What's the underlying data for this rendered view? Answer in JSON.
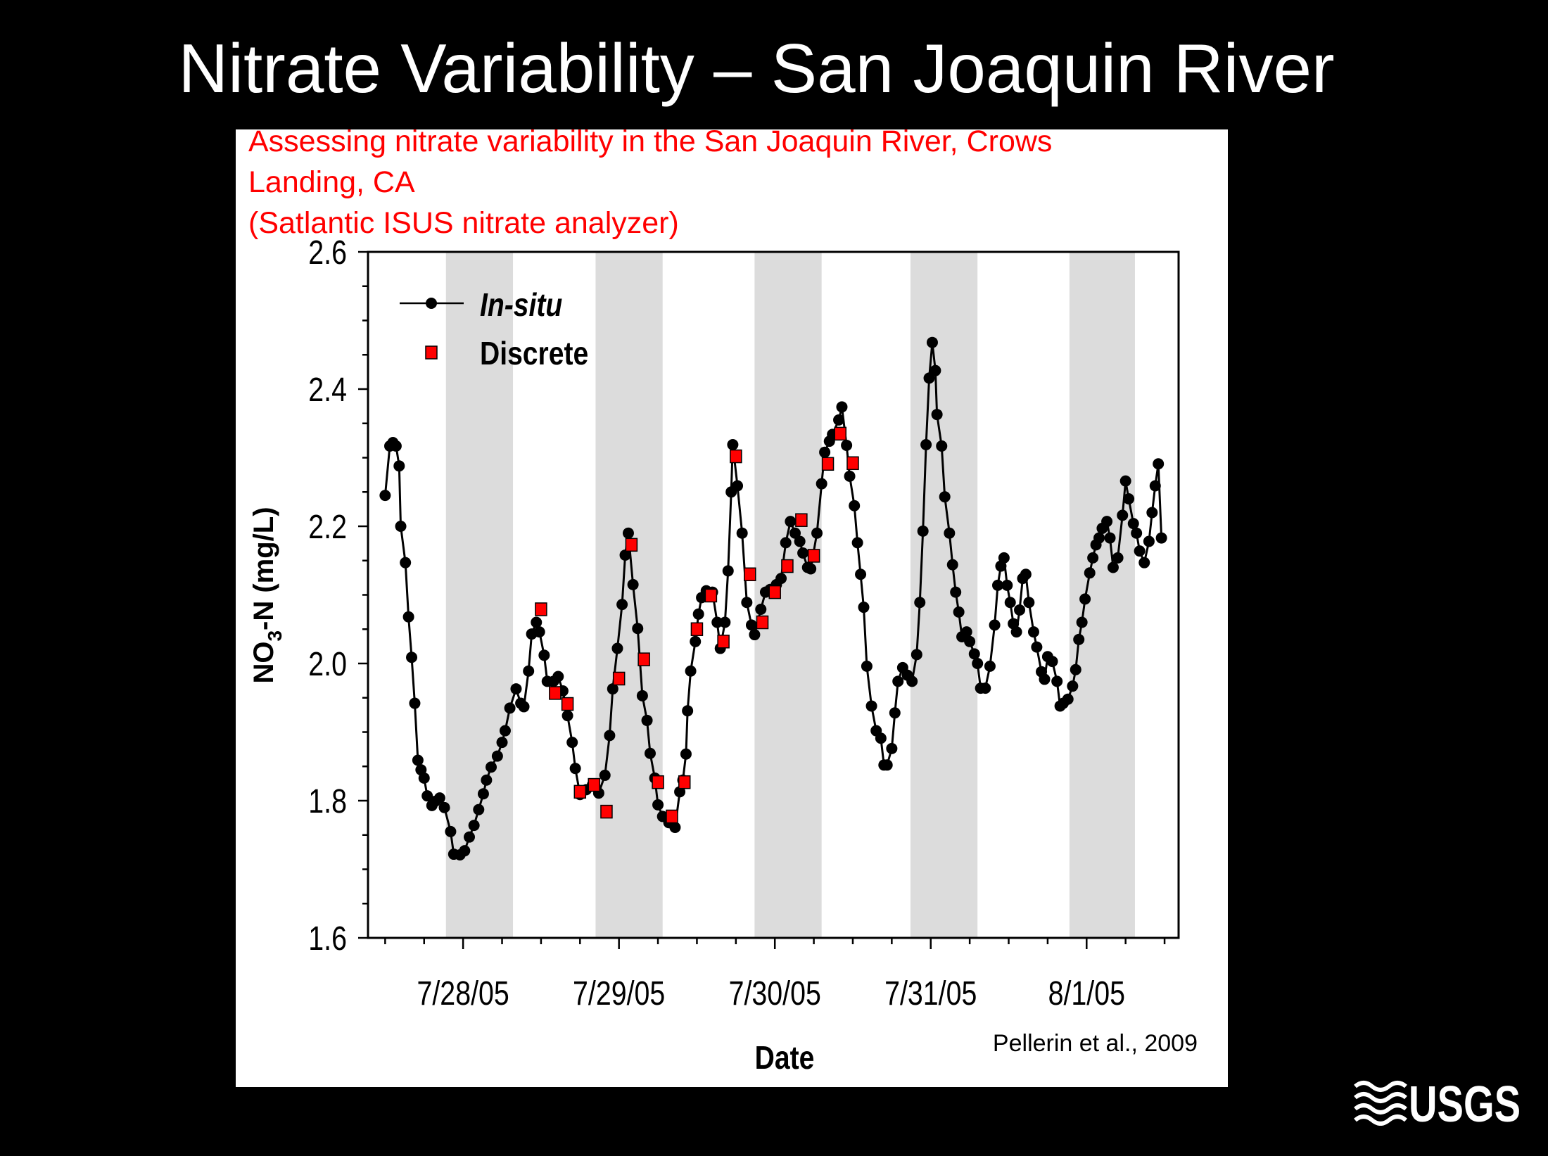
{
  "slide_title": "Nitrate Variability – San Joaquin River",
  "subtitle_lines": [
    "Assessing nitrate variability in the San Joaquin River, Crows",
    "Landing, CA",
    "(Satlantic ISUS nitrate analyzer)"
  ],
  "citation": "Pellerin et al., 2009",
  "logo_text": "USGS",
  "colors": {
    "background": "#000000",
    "panel": "#ffffff",
    "subtitle": "#ff0000",
    "night_band": "#dcdcdc",
    "insitu": "#000000",
    "discrete": "#ff0000"
  },
  "chart_data": {
    "type": "line",
    "title": "",
    "xlabel": "Date",
    "ylabel_main": "NO",
    "ylabel_sub": "3",
    "ylabel_rest": "-N (mg/L)",
    "x_units": "days since 7/28/05 00:00",
    "xlim": [
      -0.61,
      4.59
    ],
    "ylim": [
      1.6,
      2.6
    ],
    "yticks": [
      1.6,
      1.8,
      2.0,
      2.2,
      2.4,
      2.6
    ],
    "ytick_labels": [
      "1.6",
      "1.8",
      "2.0",
      "2.2",
      "2.4",
      "2.6"
    ],
    "xticks": [
      0,
      1,
      2,
      3,
      4
    ],
    "xtick_labels": [
      "7/28/05",
      "7/29/05",
      "7/30/05",
      "7/31/05",
      "8/1/05"
    ],
    "grid": false,
    "legend_position": "top-left",
    "shaded_bands": [
      [
        -0.11,
        0.32
      ],
      [
        0.85,
        1.28
      ],
      [
        1.87,
        2.3
      ],
      [
        2.87,
        3.3
      ],
      [
        3.89,
        4.31
      ]
    ],
    "series": [
      {
        "name": "In-situ",
        "style": "line-with-circles",
        "points": [
          [
            -0.5,
            2.245
          ],
          [
            -0.47,
            2.317
          ],
          [
            -0.45,
            2.322
          ],
          [
            -0.43,
            2.317
          ],
          [
            -0.41,
            2.288
          ],
          [
            -0.4,
            2.2
          ],
          [
            -0.37,
            2.147
          ],
          [
            -0.35,
            2.068
          ],
          [
            -0.33,
            2.009
          ],
          [
            -0.31,
            1.942
          ],
          [
            -0.29,
            1.859
          ],
          [
            -0.27,
            1.845
          ],
          [
            -0.25,
            1.833
          ],
          [
            -0.23,
            1.807
          ],
          [
            -0.2,
            1.793
          ],
          [
            -0.18,
            1.799
          ],
          [
            -0.15,
            1.804
          ],
          [
            -0.12,
            1.79
          ],
          [
            -0.08,
            1.755
          ],
          [
            -0.06,
            1.722
          ],
          [
            -0.02,
            1.721
          ],
          [
            0.01,
            1.727
          ],
          [
            0.04,
            1.747
          ],
          [
            0.07,
            1.764
          ],
          [
            0.1,
            1.787
          ],
          [
            0.13,
            1.81
          ],
          [
            0.15,
            1.83
          ],
          [
            0.18,
            1.849
          ],
          [
            0.22,
            1.865
          ],
          [
            0.25,
            1.885
          ],
          [
            0.27,
            1.902
          ],
          [
            0.3,
            1.935
          ],
          [
            0.34,
            1.963
          ],
          [
            0.37,
            1.942
          ],
          [
            0.39,
            1.937
          ],
          [
            0.42,
            1.989
          ],
          [
            0.44,
            2.043
          ],
          [
            0.47,
            2.06
          ],
          [
            0.49,
            2.046
          ],
          [
            0.52,
            2.012
          ],
          [
            0.54,
            1.974
          ],
          [
            0.58,
            1.974
          ],
          [
            0.61,
            1.981
          ],
          [
            0.64,
            1.96
          ],
          [
            0.67,
            1.924
          ],
          [
            0.7,
            1.885
          ],
          [
            0.72,
            1.847
          ],
          [
            0.75,
            1.809
          ],
          [
            0.79,
            1.816
          ],
          [
            0.83,
            1.823
          ],
          [
            0.87,
            1.811
          ],
          [
            0.91,
            1.837
          ],
          [
            0.94,
            1.895
          ],
          [
            0.96,
            1.963
          ],
          [
            0.99,
            2.022
          ],
          [
            1.02,
            2.086
          ],
          [
            1.04,
            2.158
          ],
          [
            1.06,
            2.19
          ],
          [
            1.09,
            2.115
          ],
          [
            1.12,
            2.051
          ],
          [
            1.15,
            1.953
          ],
          [
            1.18,
            1.917
          ],
          [
            1.2,
            1.869
          ],
          [
            1.23,
            1.833
          ],
          [
            1.25,
            1.794
          ],
          [
            1.28,
            1.777
          ],
          [
            1.32,
            1.768
          ],
          [
            1.36,
            1.761
          ],
          [
            1.39,
            1.813
          ],
          [
            1.41,
            1.83
          ],
          [
            1.43,
            1.868
          ],
          [
            1.44,
            1.931
          ],
          [
            1.46,
            1.989
          ],
          [
            1.49,
            2.032
          ],
          [
            1.51,
            2.072
          ],
          [
            1.53,
            2.096
          ],
          [
            1.56,
            2.106
          ],
          [
            1.6,
            2.104
          ],
          [
            1.63,
            2.06
          ],
          [
            1.65,
            2.022
          ],
          [
            1.68,
            2.06
          ],
          [
            1.7,
            2.135
          ],
          [
            1.72,
            2.25
          ],
          [
            1.73,
            2.319
          ],
          [
            1.76,
            2.259
          ],
          [
            1.79,
            2.19
          ],
          [
            1.82,
            2.089
          ],
          [
            1.85,
            2.056
          ],
          [
            1.87,
            2.042
          ],
          [
            1.91,
            2.079
          ],
          [
            1.94,
            2.104
          ],
          [
            1.97,
            2.108
          ],
          [
            2.01,
            2.115
          ],
          [
            2.04,
            2.124
          ],
          [
            2.07,
            2.176
          ],
          [
            2.1,
            2.207
          ],
          [
            2.13,
            2.19
          ],
          [
            2.16,
            2.178
          ],
          [
            2.18,
            2.161
          ],
          [
            2.21,
            2.14
          ],
          [
            2.23,
            2.138
          ],
          [
            2.27,
            2.19
          ],
          [
            2.3,
            2.262
          ],
          [
            2.32,
            2.308
          ],
          [
            2.35,
            2.324
          ],
          [
            2.37,
            2.334
          ],
          [
            2.41,
            2.355
          ],
          [
            2.43,
            2.374
          ],
          [
            2.46,
            2.318
          ],
          [
            2.48,
            2.273
          ],
          [
            2.51,
            2.23
          ],
          [
            2.53,
            2.176
          ],
          [
            2.55,
            2.13
          ],
          [
            2.57,
            2.082
          ],
          [
            2.59,
            1.996
          ],
          [
            2.62,
            1.938
          ],
          [
            2.65,
            1.902
          ],
          [
            2.68,
            1.891
          ],
          [
            2.7,
            1.852
          ],
          [
            2.72,
            1.852
          ],
          [
            2.75,
            1.876
          ],
          [
            2.77,
            1.928
          ],
          [
            2.79,
            1.974
          ],
          [
            2.82,
            1.994
          ],
          [
            2.85,
            1.983
          ],
          [
            2.88,
            1.974
          ],
          [
            2.91,
            2.013
          ],
          [
            2.93,
            2.089
          ],
          [
            2.95,
            2.193
          ],
          [
            2.97,
            2.319
          ],
          [
            2.99,
            2.416
          ],
          [
            3.01,
            2.468
          ],
          [
            3.03,
            2.427
          ],
          [
            3.04,
            2.363
          ],
          [
            3.07,
            2.317
          ],
          [
            3.09,
            2.243
          ],
          [
            3.12,
            2.19
          ],
          [
            3.14,
            2.144
          ],
          [
            3.16,
            2.104
          ],
          [
            3.18,
            2.075
          ],
          [
            3.2,
            2.039
          ],
          [
            3.23,
            2.046
          ],
          [
            3.25,
            2.032
          ],
          [
            3.28,
            2.014
          ],
          [
            3.3,
            2.0
          ],
          [
            3.32,
            1.964
          ],
          [
            3.35,
            1.964
          ],
          [
            3.38,
            1.996
          ],
          [
            3.41,
            2.056
          ],
          [
            3.43,
            2.114
          ],
          [
            3.45,
            2.142
          ],
          [
            3.47,
            2.154
          ],
          [
            3.49,
            2.114
          ],
          [
            3.51,
            2.089
          ],
          [
            3.53,
            2.058
          ],
          [
            3.55,
            2.046
          ],
          [
            3.57,
            2.078
          ],
          [
            3.59,
            2.124
          ],
          [
            3.61,
            2.13
          ],
          [
            3.63,
            2.089
          ],
          [
            3.66,
            2.046
          ],
          [
            3.68,
            2.024
          ],
          [
            3.71,
            1.988
          ],
          [
            3.73,
            1.977
          ],
          [
            3.75,
            2.01
          ],
          [
            3.78,
            2.003
          ],
          [
            3.81,
            1.974
          ],
          [
            3.83,
            1.938
          ],
          [
            3.85,
            1.942
          ],
          [
            3.88,
            1.948
          ],
          [
            3.91,
            1.967
          ],
          [
            3.93,
            1.991
          ],
          [
            3.95,
            2.035
          ],
          [
            3.97,
            2.06
          ],
          [
            3.99,
            2.094
          ],
          [
            4.02,
            2.132
          ],
          [
            4.04,
            2.154
          ],
          [
            4.06,
            2.173
          ],
          [
            4.08,
            2.183
          ],
          [
            4.1,
            2.197
          ],
          [
            4.13,
            2.207
          ],
          [
            4.15,
            2.183
          ],
          [
            4.17,
            2.14
          ],
          [
            4.2,
            2.154
          ],
          [
            4.23,
            2.216
          ],
          [
            4.25,
            2.266
          ],
          [
            4.27,
            2.24
          ],
          [
            4.3,
            2.204
          ],
          [
            4.32,
            2.19
          ],
          [
            4.34,
            2.164
          ],
          [
            4.37,
            2.147
          ],
          [
            4.4,
            2.178
          ],
          [
            4.42,
            2.22
          ],
          [
            4.44,
            2.259
          ],
          [
            4.46,
            2.291
          ],
          [
            4.48,
            2.183
          ]
        ]
      },
      {
        "name": "Discrete",
        "style": "red-squares",
        "points": [
          [
            0.5,
            2.079
          ],
          [
            0.59,
            1.957
          ],
          [
            0.67,
            1.941
          ],
          [
            0.75,
            1.813
          ],
          [
            0.84,
            1.823
          ],
          [
            0.92,
            1.784
          ],
          [
            1.0,
            1.978
          ],
          [
            1.08,
            2.173
          ],
          [
            1.16,
            2.006
          ],
          [
            1.25,
            1.827
          ],
          [
            1.34,
            1.777
          ],
          [
            1.42,
            1.827
          ],
          [
            1.5,
            2.05
          ],
          [
            1.59,
            2.099
          ],
          [
            1.67,
            2.032
          ],
          [
            1.75,
            2.302
          ],
          [
            1.84,
            2.13
          ],
          [
            1.92,
            2.06
          ],
          [
            2.0,
            2.104
          ],
          [
            2.08,
            2.142
          ],
          [
            2.17,
            2.209
          ],
          [
            2.25,
            2.157
          ],
          [
            2.34,
            2.291
          ],
          [
            2.42,
            2.335
          ],
          [
            2.5,
            2.292
          ]
        ]
      }
    ]
  }
}
